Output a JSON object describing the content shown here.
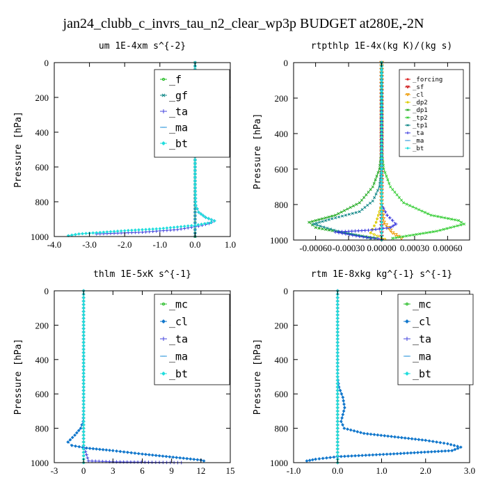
{
  "figure_title": "jan24_clubb_c_invrs_tau_n2_clear_wp3p  BUDGET at280E,-2N",
  "chart_data": [
    {
      "type": "line",
      "title": "um  1E-4xm s^{-2}",
      "ylabel": "Pressure [hPa]",
      "xlim": [
        -4.0,
        1.0
      ],
      "ylim": [
        1000,
        0
      ],
      "xticks": [
        -4.0,
        -3.0,
        -2.0,
        -1.0,
        0.0,
        1.0
      ],
      "xtick_labels": [
        "-4.0",
        "-3.0",
        "-2.0",
        "-1.0",
        "0.0",
        "1.0"
      ],
      "yticks": [
        0,
        200,
        400,
        600,
        800,
        1000
      ],
      "ytick_labels": [
        "0",
        "200",
        "400",
        "600",
        "800",
        "1000"
      ],
      "legend_position": "top-right",
      "series": [
        {
          "name": "_f",
          "color": "#22bb22",
          "marker": "circle",
          "x": [
            0,
            0,
            0,
            0,
            0,
            0,
            0,
            0,
            0,
            0,
            0
          ],
          "y": [
            0,
            100,
            200,
            300,
            400,
            500,
            600,
            700,
            800,
            900,
            1000
          ]
        },
        {
          "name": "_gf",
          "color": "#118888",
          "marker": "x",
          "x": [
            0,
            0,
            0,
            0,
            0,
            0,
            0,
            0,
            0,
            0,
            0
          ],
          "y": [
            0,
            100,
            200,
            300,
            400,
            500,
            600,
            700,
            800,
            900,
            1000
          ]
        },
        {
          "name": "_ta",
          "color": "#4444dd",
          "marker": "plus",
          "x": [
            0,
            0,
            0.02,
            0.1,
            0.3,
            0.55,
            0.4,
            0.1,
            -0.5,
            -1.5,
            -2.8
          ],
          "y": [
            0,
            700,
            820,
            860,
            890,
            910,
            925,
            940,
            960,
            975,
            985
          ]
        },
        {
          "name": "_ma",
          "color": "#3399dd",
          "marker": "dash",
          "x": [
            0,
            0,
            0,
            0,
            0,
            0,
            0
          ],
          "y": [
            0,
            200,
            400,
            600,
            800,
            900,
            1000
          ]
        },
        {
          "name": "_bt",
          "color": "#22dddd",
          "marker": "diamond",
          "x": [
            0,
            0,
            0.02,
            0.1,
            0.3,
            0.55,
            0.45,
            0.0,
            -1.0,
            -1.9,
            -2.6,
            -3.3,
            -3.6
          ],
          "y": [
            0,
            700,
            820,
            860,
            890,
            910,
            920,
            935,
            955,
            965,
            975,
            985,
            995
          ]
        }
      ]
    },
    {
      "type": "line",
      "title": "rtpthlp  1E-4x(kg K)/(kg s)",
      "ylabel": "Pressure [hPa]",
      "xlim": [
        -0.0008,
        0.0008
      ],
      "ylim": [
        1000,
        0
      ],
      "xticks": [
        -0.0006,
        -0.0003,
        0.0,
        0.0003,
        0.0006
      ],
      "xtick_labels": [
        "-0.00060",
        "-0.00030",
        "0.00000",
        "0.00030",
        "0.00060"
      ],
      "yticks": [
        0,
        200,
        400,
        600,
        800,
        1000
      ],
      "ytick_labels": [
        "0",
        "200",
        "400",
        "600",
        "800",
        "1000"
      ],
      "legend_position": "top-right",
      "series": [
        {
          "name": "_forcing",
          "color": "#dd2222",
          "marker": "circle",
          "x": [
            0,
            0,
            0,
            0,
            0,
            0,
            0,
            0,
            0,
            0,
            0
          ],
          "y": [
            0,
            100,
            200,
            300,
            400,
            500,
            600,
            700,
            800,
            900,
            1000
          ]
        },
        {
          "name": "_sf",
          "color": "#cc1111",
          "marker": "triangle",
          "x": [
            0,
            0,
            0,
            0,
            0,
            0,
            0,
            0,
            0,
            0,
            0
          ],
          "y": [
            0,
            100,
            200,
            300,
            400,
            500,
            600,
            700,
            800,
            900,
            1000
          ]
        },
        {
          "name": "_cl",
          "color": "#ee9900",
          "marker": "triangle",
          "x": [
            0,
            0,
            2e-05,
            0.0001,
            0.00018
          ],
          "y": [
            0,
            800,
            900,
            960,
            990
          ]
        },
        {
          "name": "_dp2",
          "color": "#ddcc00",
          "marker": "circle",
          "x": [
            0,
            0,
            -5e-05,
            -0.0001,
            3e-05
          ],
          "y": [
            0,
            800,
            900,
            960,
            995
          ]
        },
        {
          "name": "_dp1",
          "color": "#22aa22",
          "marker": "x",
          "x": [
            0,
            0,
            -2e-05,
            -8e-05,
            -0.0002,
            -0.00042,
            -0.00066,
            -0.0006,
            -0.0003,
            -5e-05
          ],
          "y": [
            0,
            500,
            600,
            700,
            790,
            860,
            900,
            930,
            965,
            990
          ]
        },
        {
          "name": "_tp2",
          "color": "#33cc33",
          "marker": "x",
          "x": [
            0,
            0,
            2e-05,
            8e-05,
            0.0002,
            0.00045,
            0.0007,
            0.00075,
            0.0005,
            0.0001
          ],
          "y": [
            0,
            500,
            600,
            700,
            790,
            860,
            890,
            910,
            950,
            990
          ]
        },
        {
          "name": "_tp1",
          "color": "#118888",
          "marker": "x",
          "x": [
            0,
            0,
            -2e-05,
            -8e-05,
            -0.0002,
            -0.00045,
            -0.00062,
            -0.0004,
            -0.0001
          ],
          "y": [
            0,
            600,
            700,
            780,
            840,
            880,
            910,
            950,
            990
          ]
        },
        {
          "name": "_ta",
          "color": "#3333dd",
          "marker": "plus",
          "x": [
            0,
            0,
            5e-05,
            0.0001,
            0.00013,
            8e-05,
            -0.00012,
            -0.00042,
            -0.0002,
            0.0
          ],
          "y": [
            0,
            800,
            860,
            890,
            910,
            930,
            945,
            955,
            980,
            995
          ]
        },
        {
          "name": "_ma",
          "color": "#3399dd",
          "marker": "dash",
          "x": [
            0,
            0,
            0,
            0,
            0,
            0
          ],
          "y": [
            0,
            200,
            400,
            600,
            800,
            1000
          ]
        },
        {
          "name": "_bt",
          "color": "#22dddd",
          "marker": "diamond",
          "x": [
            0,
            0,
            0,
            0,
            0,
            0
          ],
          "y": [
            0,
            200,
            400,
            600,
            800,
            1000
          ]
        }
      ]
    },
    {
      "type": "line",
      "title": "thlm  1E-5xK s^{-1}",
      "ylabel": "Pressure [hPa]",
      "xlim": [
        -3,
        15
      ],
      "ylim": [
        1000,
        0
      ],
      "xticks": [
        -3,
        0,
        3,
        6,
        9,
        12,
        15
      ],
      "xtick_labels": [
        "-3",
        "0",
        "3",
        "6",
        "9",
        "12",
        "15"
      ],
      "yticks": [
        0,
        200,
        400,
        600,
        800,
        1000
      ],
      "ytick_labels": [
        "0",
        "200",
        "400",
        "600",
        "800",
        "1000"
      ],
      "legend_position": "top-right",
      "series": [
        {
          "name": "_mc",
          "color": "#22bb22",
          "marker": "circle",
          "x": [
            0,
            0,
            0,
            0,
            0,
            0,
            0,
            0,
            0,
            0,
            0
          ],
          "y": [
            0,
            100,
            200,
            300,
            400,
            500,
            600,
            700,
            800,
            900,
            1000
          ]
        },
        {
          "name": "_cl",
          "color": "#1177cc",
          "marker": "diamond",
          "x": [
            0,
            0,
            -0.05,
            -0.3,
            -0.9,
            -1.6,
            -1.2,
            0.3,
            3.0,
            6.0,
            9.5,
            12.0,
            12.3
          ],
          "y": [
            0,
            700,
            760,
            800,
            840,
            880,
            900,
            915,
            930,
            950,
            970,
            985,
            990
          ]
        },
        {
          "name": "_ta",
          "color": "#4444dd",
          "marker": "plus",
          "x": [
            0,
            0,
            0,
            0.5,
            3.0,
            7.0,
            10.0
          ],
          "y": [
            0,
            700,
            900,
            990,
            995,
            998,
            1000
          ]
        },
        {
          "name": "_ma",
          "color": "#3399dd",
          "marker": "dash",
          "x": [
            0,
            0,
            0,
            0,
            0,
            0
          ],
          "y": [
            0,
            200,
            400,
            600,
            800,
            1000
          ]
        },
        {
          "name": "_bt",
          "color": "#22dddd",
          "marker": "diamond",
          "x": [
            0,
            0,
            0,
            0,
            0,
            0
          ],
          "y": [
            0,
            200,
            400,
            600,
            800,
            1000
          ]
        }
      ]
    },
    {
      "type": "line",
      "title": "rtm  1E-8xkg kg^{-1} s^{-1}",
      "ylabel": "Pressure [hPa]",
      "xlim": [
        -1.0,
        3.0
      ],
      "ylim": [
        1000,
        0
      ],
      "xticks": [
        -1.0,
        0.0,
        1.0,
        2.0,
        3.0
      ],
      "xtick_labels": [
        "-1.0",
        "0.0",
        "1.0",
        "2.0",
        "3.0"
      ],
      "yticks": [
        0,
        200,
        400,
        600,
        800,
        1000
      ],
      "ytick_labels": [
        "0",
        "200",
        "400",
        "600",
        "800",
        "1000"
      ],
      "legend_position": "top-right",
      "series": [
        {
          "name": "_mc",
          "color": "#22bb22",
          "marker": "circle",
          "x": [
            0,
            0,
            0,
            0,
            0,
            0,
            0,
            0,
            0,
            0,
            0
          ],
          "y": [
            0,
            100,
            200,
            300,
            400,
            500,
            600,
            700,
            800,
            900,
            1000
          ]
        },
        {
          "name": "_cl",
          "color": "#1177cc",
          "marker": "diamond",
          "x": [
            0,
            0,
            0.03,
            0.12,
            0.16,
            0.12,
            0.08,
            0.15,
            0.6,
            1.3,
            2.0,
            2.5,
            2.8,
            2.6,
            1.2,
            0.0,
            -0.5,
            -0.7
          ],
          "y": [
            0,
            500,
            560,
            620,
            680,
            720,
            760,
            800,
            830,
            850,
            870,
            890,
            910,
            930,
            950,
            965,
            980,
            990
          ]
        },
        {
          "name": "_ta",
          "color": "#4444dd",
          "marker": "plus",
          "x": [
            0,
            0,
            0,
            0
          ],
          "y": [
            0,
            600,
            900,
            1000
          ]
        },
        {
          "name": "_ma",
          "color": "#3399dd",
          "marker": "dash",
          "x": [
            0,
            0,
            0,
            0,
            0,
            0
          ],
          "y": [
            0,
            200,
            400,
            600,
            800,
            1000
          ]
        },
        {
          "name": "_bt",
          "color": "#22dddd",
          "marker": "diamond",
          "x": [
            0,
            0,
            0,
            0,
            0,
            0
          ],
          "y": [
            0,
            200,
            400,
            600,
            800,
            1000
          ]
        }
      ]
    }
  ]
}
